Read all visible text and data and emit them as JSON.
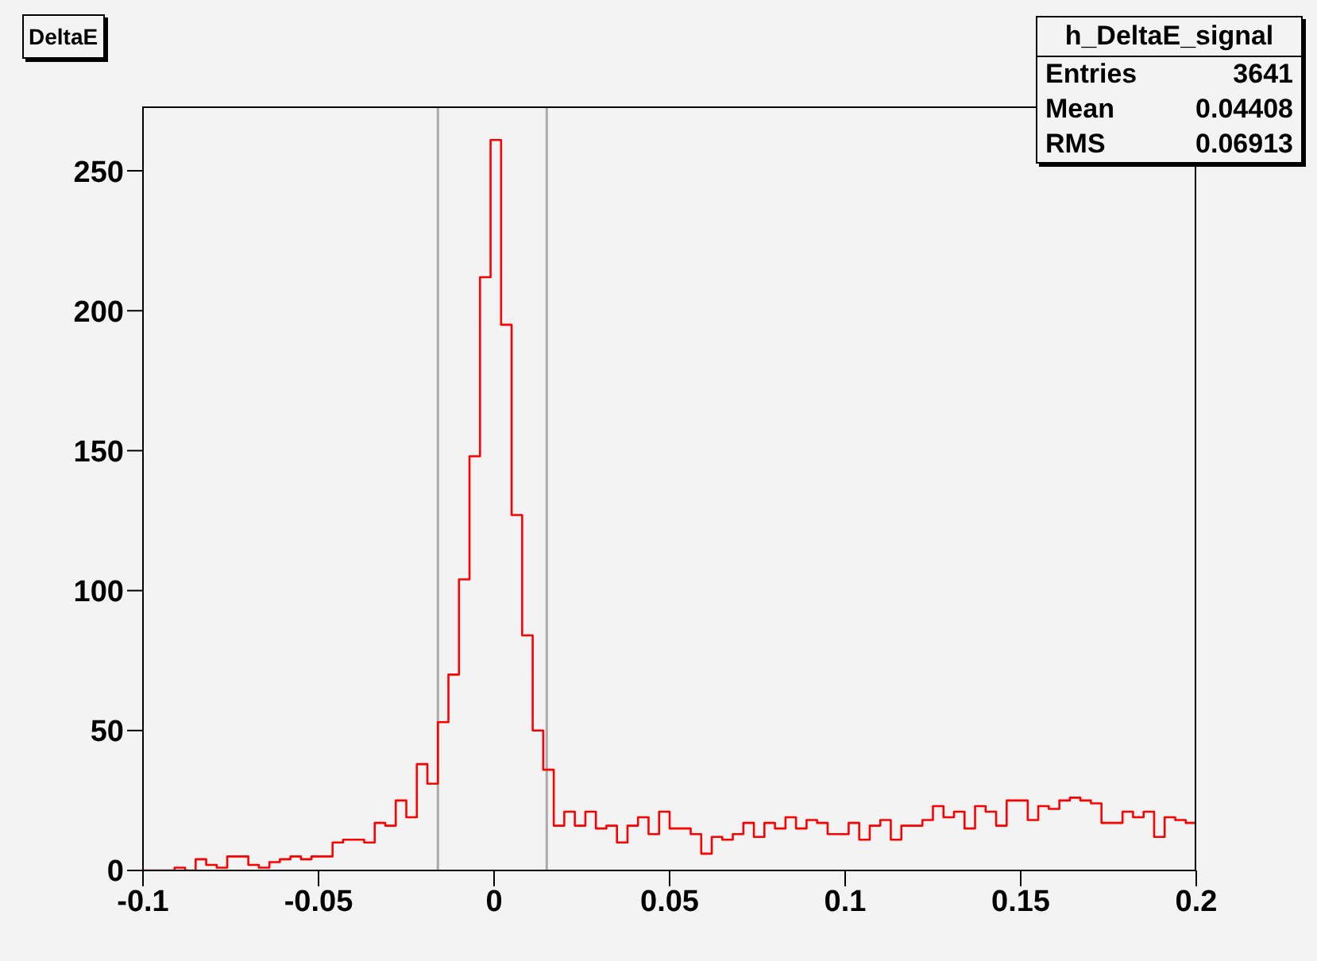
{
  "chart_data": {
    "type": "histogram",
    "title": "DeltaE",
    "bins": [
      -0.1,
      -0.097,
      -0.094,
      -0.091,
      -0.088,
      -0.085,
      -0.082,
      -0.079,
      -0.076,
      -0.073,
      -0.07,
      -0.067,
      -0.064,
      -0.061,
      -0.058,
      -0.055,
      -0.052,
      -0.049,
      -0.046,
      -0.043,
      -0.04,
      -0.037,
      -0.034,
      -0.031,
      -0.028,
      -0.025,
      -0.022,
      -0.019,
      -0.016,
      -0.013,
      -0.01,
      -0.007,
      -0.004,
      -0.001,
      0.002,
      0.005,
      0.008,
      0.011,
      0.014,
      0.017,
      0.02,
      0.023,
      0.026,
      0.029,
      0.032,
      0.035,
      0.038,
      0.041,
      0.044,
      0.047,
      0.05,
      0.053,
      0.056,
      0.059,
      0.062,
      0.065,
      0.068,
      0.071,
      0.074,
      0.077,
      0.08,
      0.083,
      0.086,
      0.089,
      0.092,
      0.095,
      0.098,
      0.101,
      0.104,
      0.107,
      0.11,
      0.113,
      0.116,
      0.119,
      0.122,
      0.125,
      0.128,
      0.131,
      0.134,
      0.137,
      0.14,
      0.143,
      0.146,
      0.149,
      0.152,
      0.155,
      0.158,
      0.161,
      0.164,
      0.167,
      0.17,
      0.173,
      0.176,
      0.179,
      0.182,
      0.185,
      0.188,
      0.191,
      0.194,
      0.197,
      0.2
    ],
    "values": [
      0,
      0,
      0,
      1,
      0,
      4,
      2,
      1,
      5,
      5,
      2,
      1,
      3,
      4,
      5,
      4,
      5,
      5,
      10,
      11,
      11,
      10,
      17,
      16,
      25,
      19,
      38,
      31,
      53,
      70,
      104,
      148,
      212,
      261,
      195,
      127,
      84,
      50,
      36,
      16,
      21,
      16,
      21,
      15,
      16,
      10,
      16,
      19,
      13,
      21,
      15,
      15,
      13,
      6,
      12,
      11,
      13,
      17,
      12,
      17,
      15,
      19,
      15,
      18,
      17,
      13,
      13,
      17,
      11,
      16,
      18,
      11,
      16,
      16,
      18,
      23,
      19,
      21,
      15,
      23,
      21,
      16,
      25,
      25,
      18,
      23,
      22,
      25,
      26,
      25,
      24,
      17,
      17,
      21,
      19,
      21,
      12,
      19,
      18,
      17
    ],
    "color": "#ff0000",
    "xlim": [
      -0.1,
      0.2
    ],
    "xticks": [
      -0.1,
      -0.05,
      0,
      0.05,
      0.1,
      0.15,
      0.2
    ],
    "ylim": [
      0,
      273
    ],
    "yticks": [
      0,
      50,
      100,
      150,
      200,
      250
    ],
    "ref_lines": [
      {
        "axis": "x",
        "value": -0.016,
        "color": "#aaaaaa"
      },
      {
        "axis": "x",
        "value": 0.015,
        "color": "#aaaaaa"
      }
    ],
    "annotations": [
      "h_DeltaE_signal",
      "Entries",
      "3641",
      "Mean",
      "0.04408",
      "RMS",
      "0.06913"
    ],
    "relative": false
  }
}
